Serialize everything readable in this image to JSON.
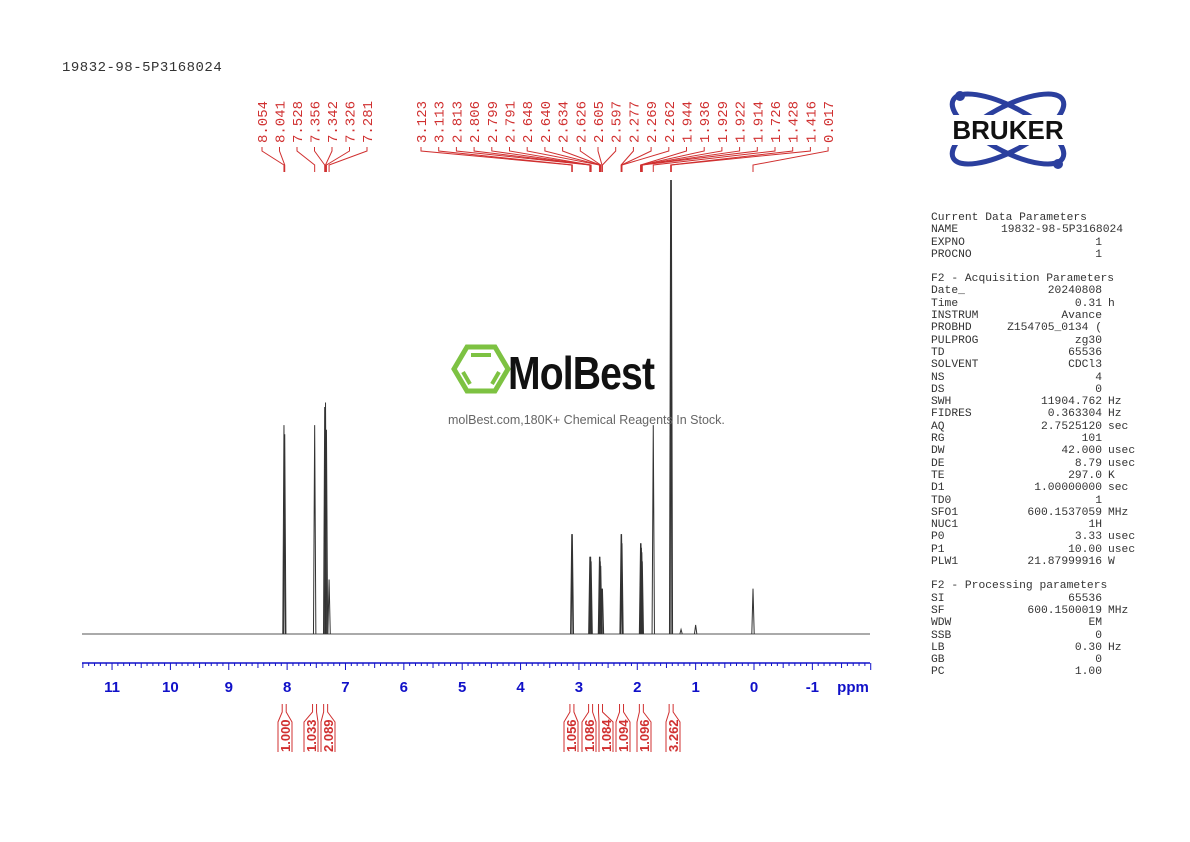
{
  "header": {
    "title": "19832-98-5P3168024"
  },
  "logo": {
    "text": "BRUKER",
    "color": "#2b3f9e"
  },
  "watermark": {
    "name": "MolBest",
    "tagline": "molBest.com,180K+ Chemical Reagents In Stock.",
    "color": "#7dc242"
  },
  "parameters": [
    {
      "heading": "Current Data Parameters",
      "rows": [
        {
          "k": "NAME",
          "v": "19832-98-5P3168024",
          "u": ""
        },
        {
          "k": "EXPNO",
          "v": "1",
          "u": ""
        },
        {
          "k": "PROCNO",
          "v": "1",
          "u": ""
        }
      ]
    },
    {
      "heading": "F2 - Acquisition Parameters",
      "rows": [
        {
          "k": "Date_",
          "v": "20240808",
          "u": ""
        },
        {
          "k": "Time",
          "v": "0.31",
          "u": "h"
        },
        {
          "k": "INSTRUM",
          "v": "Avance",
          "u": ""
        },
        {
          "k": "PROBHD",
          "v": "Z154705_0134 (",
          "u": ""
        },
        {
          "k": "PULPROG",
          "v": "zg30",
          "u": ""
        },
        {
          "k": "TD",
          "v": "65536",
          "u": ""
        },
        {
          "k": "SOLVENT",
          "v": "CDCl3",
          "u": ""
        },
        {
          "k": "NS",
          "v": "4",
          "u": ""
        },
        {
          "k": "DS",
          "v": "0",
          "u": ""
        },
        {
          "k": "SWH",
          "v": "11904.762",
          "u": "Hz"
        },
        {
          "k": "FIDRES",
          "v": "0.363304",
          "u": "Hz"
        },
        {
          "k": "AQ",
          "v": "2.7525120",
          "u": "sec"
        },
        {
          "k": "RG",
          "v": "101",
          "u": ""
        },
        {
          "k": "DW",
          "v": "42.000",
          "u": "usec"
        },
        {
          "k": "DE",
          "v": "8.79",
          "u": "usec"
        },
        {
          "k": "TE",
          "v": "297.0",
          "u": "K"
        },
        {
          "k": "D1",
          "v": "1.00000000",
          "u": "sec"
        },
        {
          "k": "TD0",
          "v": "1",
          "u": ""
        },
        {
          "k": "SFO1",
          "v": "600.1537059",
          "u": "MHz"
        },
        {
          "k": "NUC1",
          "v": "1H",
          "u": ""
        },
        {
          "k": "P0",
          "v": "3.33",
          "u": "usec"
        },
        {
          "k": "P1",
          "v": "10.00",
          "u": "usec"
        },
        {
          "k": "PLW1",
          "v": "21.87999916",
          "u": "W"
        }
      ]
    },
    {
      "heading": "F2 - Processing parameters",
      "rows": [
        {
          "k": "SI",
          "v": "65536",
          "u": ""
        },
        {
          "k": "SF",
          "v": "600.1500019",
          "u": "MHz"
        },
        {
          "k": "WDW",
          "v": "EM",
          "u": ""
        },
        {
          "k": "SSB",
          "v": "0",
          "u": ""
        },
        {
          "k": "LB",
          "v": "0.30",
          "u": "Hz"
        },
        {
          "k": "GB",
          "v": "0",
          "u": ""
        },
        {
          "k": "PC",
          "v": "1.00",
          "u": ""
        }
      ]
    }
  ],
  "chart_data": {
    "type": "line",
    "xlabel": "ppm",
    "xlim": [
      11.5,
      -2.0
    ],
    "x_reversed": true,
    "xticks": [
      11,
      10,
      9,
      8,
      7,
      6,
      5,
      4,
      3,
      2,
      1,
      0,
      -1
    ],
    "axis_color": "#1010c8",
    "label_color": "#d03030",
    "peak_label_groups": [
      [
        "8.054",
        "8.041",
        "7.528",
        "7.356",
        "7.342",
        "7.326",
        "7.281"
      ],
      [
        "3.123",
        "3.113",
        "2.813",
        "2.806",
        "2.799",
        "2.791",
        "2.648",
        "2.640",
        "2.634",
        "2.626",
        "2.605",
        "2.597",
        "2.277",
        "2.269",
        "2.262",
        "1.944",
        "1.936",
        "1.929",
        "1.922",
        "1.914",
        "1.726",
        "1.428",
        "1.416",
        "0.017"
      ]
    ],
    "peaks": [
      {
        "ppm": 8.054,
        "intensity": 46
      },
      {
        "ppm": 8.041,
        "intensity": 44
      },
      {
        "ppm": 7.528,
        "intensity": 46
      },
      {
        "ppm": 7.356,
        "intensity": 50
      },
      {
        "ppm": 7.342,
        "intensity": 51
      },
      {
        "ppm": 7.326,
        "intensity": 45
      },
      {
        "ppm": 7.281,
        "intensity": 12
      },
      {
        "ppm": 3.123,
        "intensity": 22
      },
      {
        "ppm": 3.113,
        "intensity": 22
      },
      {
        "ppm": 2.813,
        "intensity": 17
      },
      {
        "ppm": 2.806,
        "intensity": 17
      },
      {
        "ppm": 2.799,
        "intensity": 17
      },
      {
        "ppm": 2.791,
        "intensity": 16
      },
      {
        "ppm": 2.648,
        "intensity": 17
      },
      {
        "ppm": 2.64,
        "intensity": 17
      },
      {
        "ppm": 2.634,
        "intensity": 16
      },
      {
        "ppm": 2.626,
        "intensity": 15
      },
      {
        "ppm": 2.605,
        "intensity": 10
      },
      {
        "ppm": 2.597,
        "intensity": 10
      },
      {
        "ppm": 2.277,
        "intensity": 22
      },
      {
        "ppm": 2.269,
        "intensity": 22
      },
      {
        "ppm": 2.262,
        "intensity": 20
      },
      {
        "ppm": 1.944,
        "intensity": 20
      },
      {
        "ppm": 1.936,
        "intensity": 20
      },
      {
        "ppm": 1.929,
        "intensity": 19
      },
      {
        "ppm": 1.922,
        "intensity": 18
      },
      {
        "ppm": 1.914,
        "intensity": 16
      },
      {
        "ppm": 1.726,
        "intensity": 46
      },
      {
        "ppm": 1.428,
        "intensity": 100
      },
      {
        "ppm": 1.416,
        "intensity": 100
      },
      {
        "ppm": 1.25,
        "intensity": 1
      },
      {
        "ppm": 1.0,
        "intensity": 2
      },
      {
        "ppm": 0.017,
        "intensity": 10
      }
    ],
    "integrals": [
      {
        "value": "1.000",
        "ppm": 8.05
      },
      {
        "value": "1.033",
        "ppm": 7.53
      },
      {
        "value": "2.089",
        "ppm": 7.34
      },
      {
        "value": "1.056",
        "ppm": 3.12
      },
      {
        "value": "1.086",
        "ppm": 2.8
      },
      {
        "value": "1.084",
        "ppm": 2.63
      },
      {
        "value": "1.094",
        "ppm": 2.27
      },
      {
        "value": "1.096",
        "ppm": 1.93
      },
      {
        "value": "3.262",
        "ppm": 1.42
      }
    ]
  }
}
